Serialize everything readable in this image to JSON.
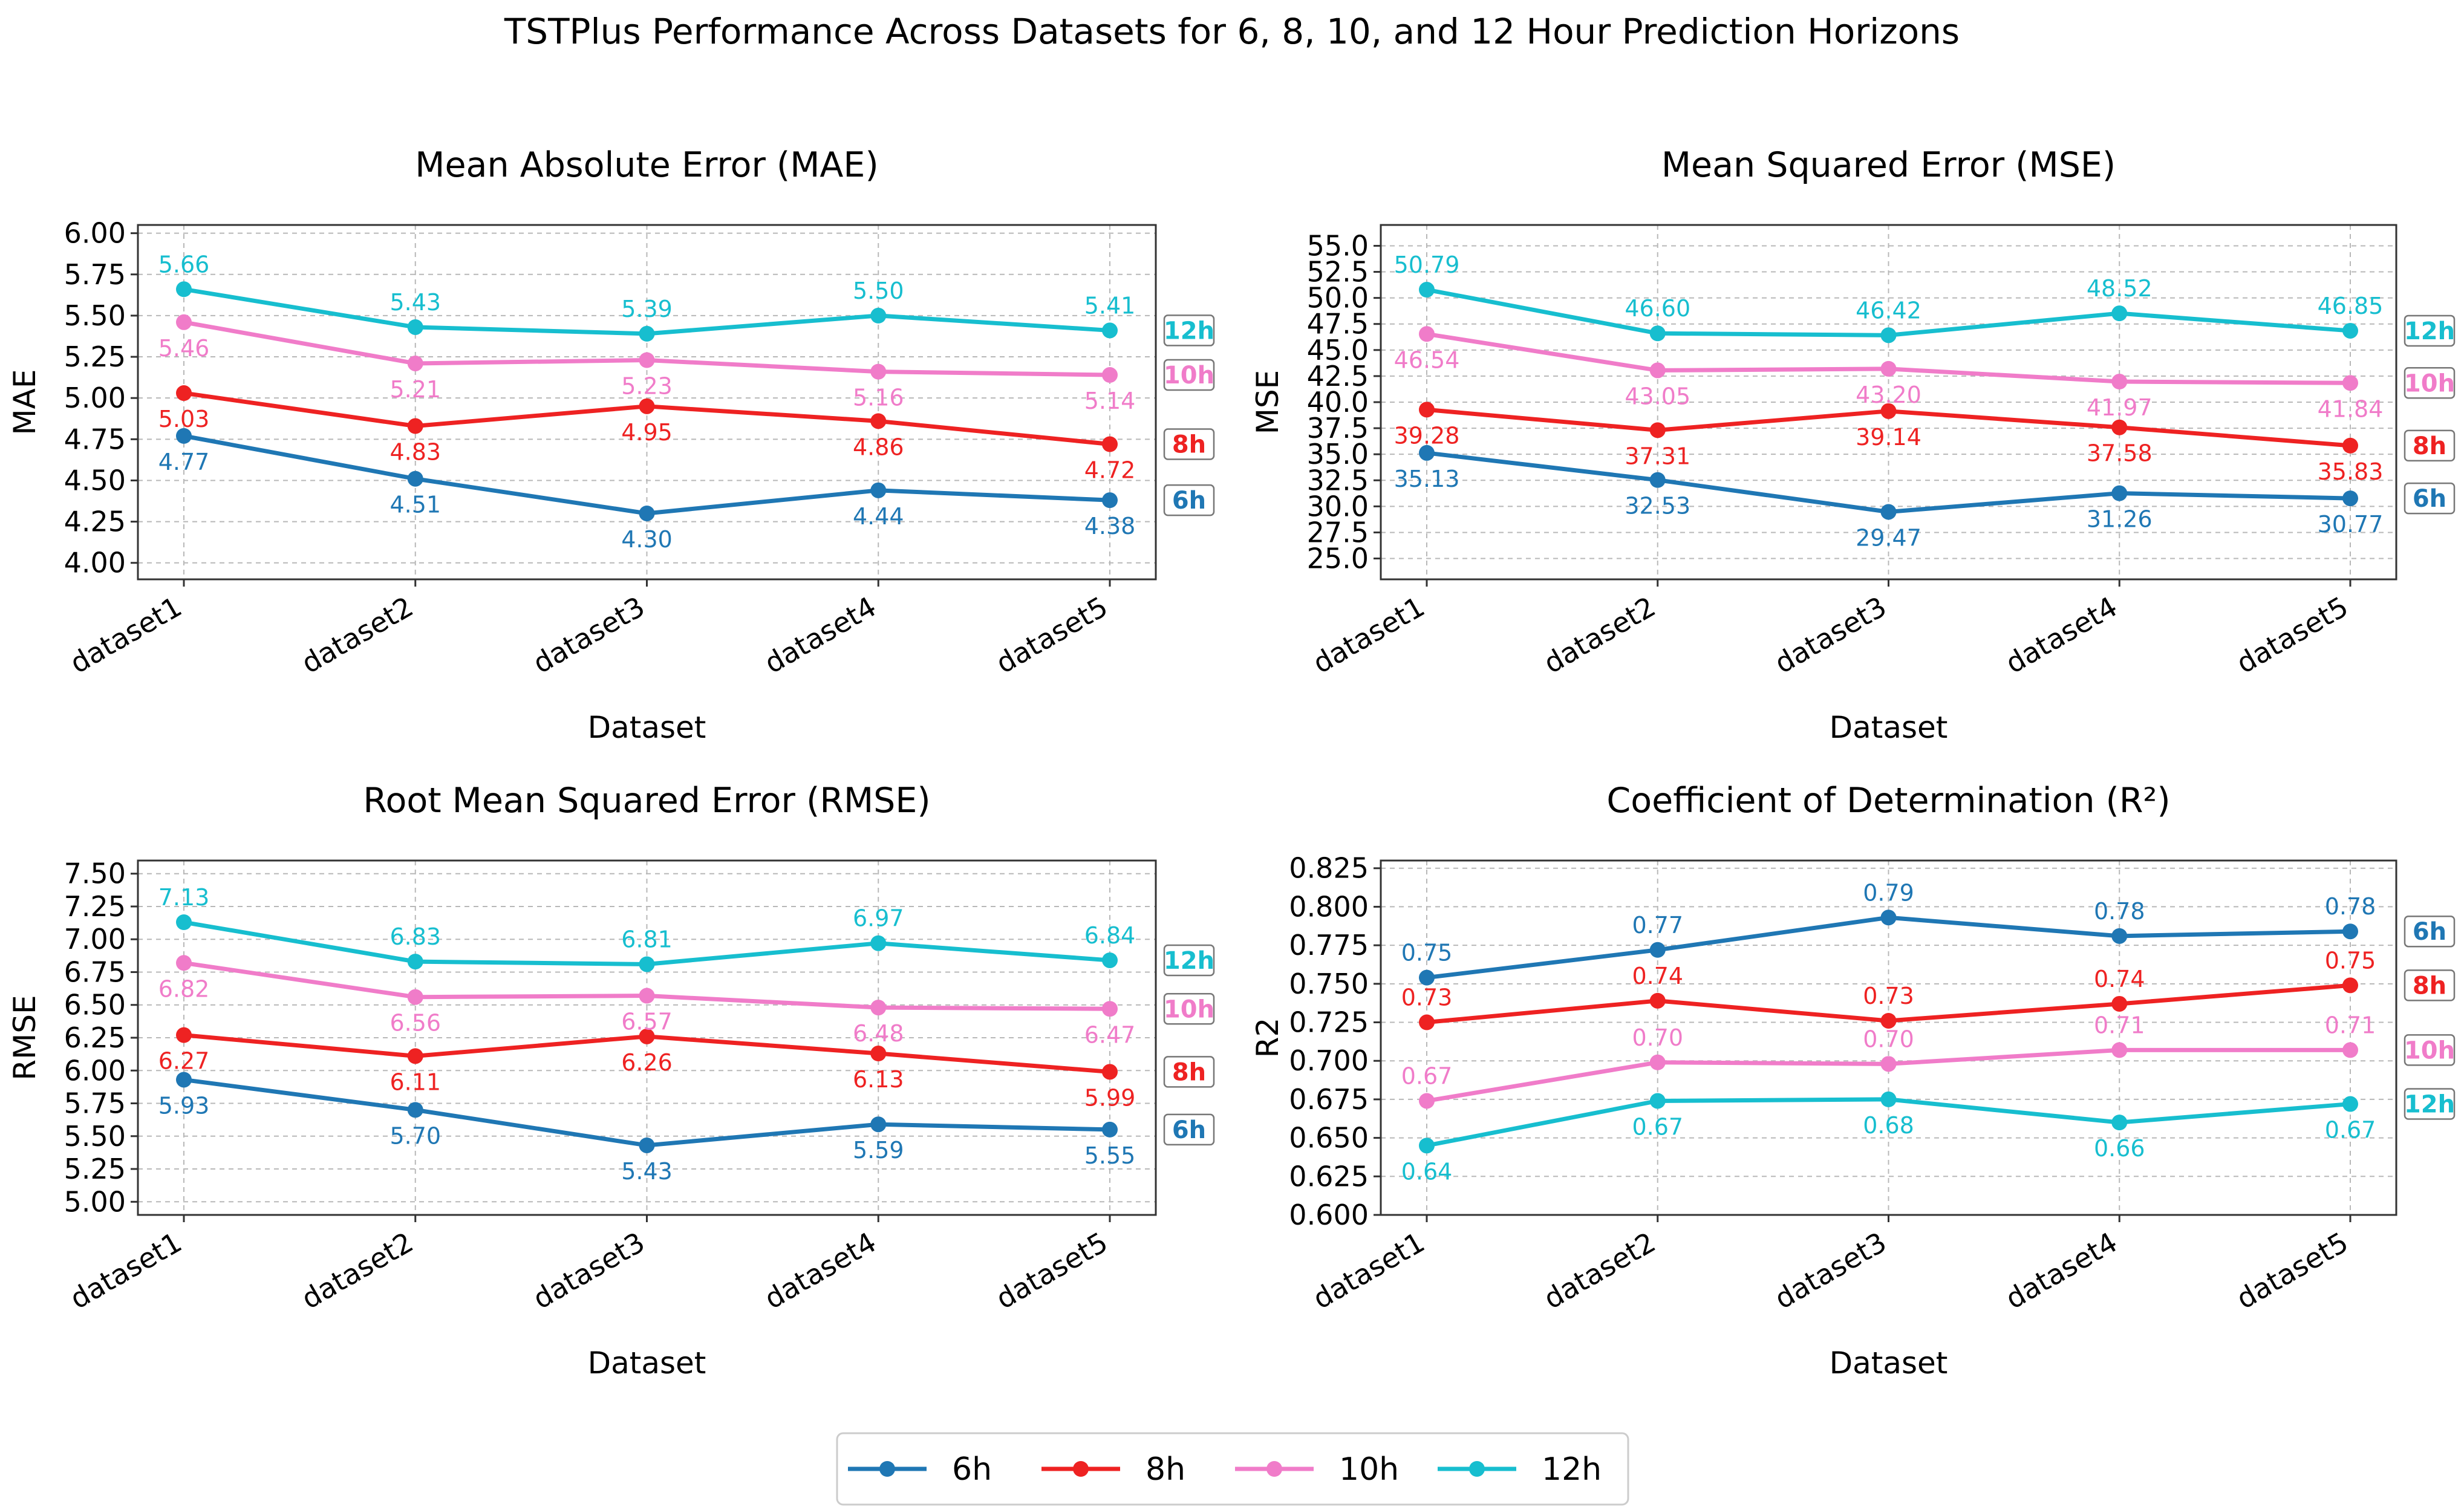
{
  "figure_title": "TSTPlus Performance Across Datasets for 6, 8, 10, and 12 Hour Prediction Horizons",
  "series_colors": {
    "6h": "#1f77b4",
    "8h": "#ee2222",
    "10h": "#f07cc9",
    "12h": "#17becf"
  },
  "legend": [
    "6h",
    "8h",
    "10h",
    "12h"
  ],
  "chart_data": [
    {
      "type": "line",
      "title": "Mean Absolute Error (MAE)",
      "xlabel": "Dataset",
      "ylabel": "MAE",
      "categories": [
        "dataset1",
        "dataset2",
        "dataset3",
        "dataset4",
        "dataset5"
      ],
      "ylim": [
        3.9,
        6.05
      ],
      "yticks": [
        "4.00",
        "4.25",
        "4.50",
        "4.75",
        "5.00",
        "5.25",
        "5.50",
        "5.75",
        "6.00"
      ],
      "series": [
        {
          "name": "6h",
          "values": [
            4.77,
            4.51,
            4.3,
            4.44,
            4.38
          ],
          "labels": [
            "4.77",
            "4.51",
            "4.30",
            "4.44",
            "4.38"
          ],
          "pos": "below"
        },
        {
          "name": "8h",
          "values": [
            5.03,
            4.83,
            4.95,
            4.86,
            4.72
          ],
          "labels": [
            "5.03",
            "4.83",
            "4.95",
            "4.86",
            "4.72"
          ],
          "pos": "below"
        },
        {
          "name": "10h",
          "values": [
            5.46,
            5.21,
            5.23,
            5.16,
            5.14
          ],
          "labels": [
            "5.46",
            "5.21",
            "5.23",
            "5.16",
            "5.14"
          ],
          "pos": "below"
        },
        {
          "name": "12h",
          "values": [
            5.66,
            5.43,
            5.39,
            5.5,
            5.41
          ],
          "labels": [
            "5.66",
            "5.43",
            "5.39",
            "5.50",
            "5.41"
          ],
          "pos": "above"
        }
      ]
    },
    {
      "type": "line",
      "title": "Mean Squared Error (MSE)",
      "xlabel": "Dataset",
      "ylabel": "MSE",
      "categories": [
        "dataset1",
        "dataset2",
        "dataset3",
        "dataset4",
        "dataset5"
      ],
      "ylim": [
        23.0,
        57.0
      ],
      "yticks": [
        "25.0",
        "27.5",
        "30.0",
        "32.5",
        "35.0",
        "37.5",
        "40.0",
        "42.5",
        "45.0",
        "47.5",
        "50.0",
        "52.5",
        "55.0"
      ],
      "series": [
        {
          "name": "6h",
          "values": [
            35.13,
            32.53,
            29.47,
            31.26,
            30.77
          ],
          "labels": [
            "35.13",
            "32.53",
            "29.47",
            "31.26",
            "30.77"
          ],
          "pos": "below"
        },
        {
          "name": "8h",
          "values": [
            39.28,
            37.31,
            39.14,
            37.58,
            35.83
          ],
          "labels": [
            "39.28",
            "37.31",
            "39.14",
            "37.58",
            "35.83"
          ],
          "pos": "below"
        },
        {
          "name": "10h",
          "values": [
            46.54,
            43.05,
            43.2,
            41.97,
            41.84
          ],
          "labels": [
            "46.54",
            "43.05",
            "43.20",
            "41.97",
            "41.84"
          ],
          "pos": "below"
        },
        {
          "name": "12h",
          "values": [
            50.79,
            46.6,
            46.42,
            48.52,
            46.85
          ],
          "labels": [
            "50.79",
            "46.60",
            "46.42",
            "48.52",
            "46.85"
          ],
          "pos": "above"
        }
      ]
    },
    {
      "type": "line",
      "title": "Root Mean Squared Error (RMSE)",
      "xlabel": "Dataset",
      "ylabel": "RMSE",
      "categories": [
        "dataset1",
        "dataset2",
        "dataset3",
        "dataset4",
        "dataset5"
      ],
      "ylim": [
        4.9,
        7.6
      ],
      "yticks": [
        "5.00",
        "5.25",
        "5.50",
        "5.75",
        "6.00",
        "6.25",
        "6.50",
        "6.75",
        "7.00",
        "7.25",
        "7.50"
      ],
      "series": [
        {
          "name": "6h",
          "values": [
            5.93,
            5.7,
            5.43,
            5.59,
            5.55
          ],
          "labels": [
            "5.93",
            "5.70",
            "5.43",
            "5.59",
            "5.55"
          ],
          "pos": "below"
        },
        {
          "name": "8h",
          "values": [
            6.27,
            6.11,
            6.26,
            6.13,
            5.99
          ],
          "labels": [
            "6.27",
            "6.11",
            "6.26",
            "6.13",
            "5.99"
          ],
          "pos": "below"
        },
        {
          "name": "10h",
          "values": [
            6.82,
            6.56,
            6.57,
            6.48,
            6.47
          ],
          "labels": [
            "6.82",
            "6.56",
            "6.57",
            "6.48",
            "6.47"
          ],
          "pos": "below"
        },
        {
          "name": "12h",
          "values": [
            7.13,
            6.83,
            6.81,
            6.97,
            6.84
          ],
          "labels": [
            "7.13",
            "6.83",
            "6.81",
            "6.97",
            "6.84"
          ],
          "pos": "above"
        }
      ]
    },
    {
      "type": "line",
      "title": "Coefficient of Determination (R²)",
      "xlabel": "Dataset",
      "ylabel": "R2",
      "categories": [
        "dataset1",
        "dataset2",
        "dataset3",
        "dataset4",
        "dataset5"
      ],
      "ylim": [
        0.6,
        0.83
      ],
      "yticks": [
        "0.600",
        "0.625",
        "0.650",
        "0.675",
        "0.700",
        "0.725",
        "0.750",
        "0.775",
        "0.800",
        "0.825"
      ],
      "series": [
        {
          "name": "6h",
          "values": [
            0.754,
            0.772,
            0.793,
            0.781,
            0.784
          ],
          "labels": [
            "0.75",
            "0.77",
            "0.79",
            "0.78",
            "0.78"
          ],
          "pos": "above"
        },
        {
          "name": "8h",
          "values": [
            0.725,
            0.739,
            0.726,
            0.737,
            0.749
          ],
          "labels": [
            "0.73",
            "0.74",
            "0.73",
            "0.74",
            "0.75"
          ],
          "pos": "above"
        },
        {
          "name": "10h",
          "values": [
            0.674,
            0.699,
            0.698,
            0.707,
            0.707
          ],
          "labels": [
            "0.67",
            "0.70",
            "0.70",
            "0.71",
            "0.71"
          ],
          "pos": "above"
        },
        {
          "name": "12h",
          "values": [
            0.645,
            0.674,
            0.675,
            0.66,
            0.672
          ],
          "labels": [
            "0.64",
            "0.67",
            "0.68",
            "0.66",
            "0.67"
          ],
          "pos": "below"
        }
      ]
    }
  ]
}
